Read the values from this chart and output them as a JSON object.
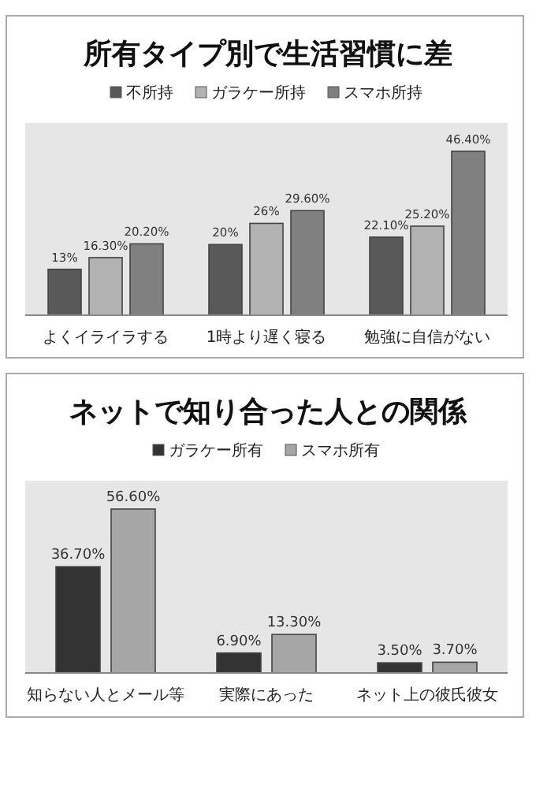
{
  "chart_data": [
    {
      "type": "bar",
      "title": "所有タイプ別で生活習慣に差",
      "categories": [
        "よくイライラする",
        "1時より遅く寝る",
        "勉強に自信がない"
      ],
      "legend": "top",
      "series": [
        {
          "name": "不所持",
          "color": "#595959",
          "values": [
            13,
            20,
            22.1
          ],
          "value_labels": [
            "13%",
            "20%",
            "22.10%"
          ]
        },
        {
          "name": "ガラケー所持",
          "color": "#b3b3b3",
          "values": [
            16.3,
            26,
            25.2
          ],
          "value_labels": [
            "16.30%",
            "26%",
            "25.20%"
          ]
        },
        {
          "name": "スマホ所持",
          "color": "#808080",
          "values": [
            20.2,
            29.6,
            46.4
          ],
          "value_labels": [
            "20.20%",
            "29.60%",
            "46.40%"
          ]
        }
      ]
    },
    {
      "type": "bar",
      "title": "ネットで知り合った人との関係",
      "categories": [
        "知らない人とメール等",
        "実際にあった",
        "ネット上の彼氏彼女"
      ],
      "legend": "top",
      "series": [
        {
          "name": "ガラケー所有",
          "color": "#333333",
          "values": [
            36.7,
            6.9,
            3.5
          ],
          "value_labels": [
            "36.70%",
            "6.90%",
            "3.50%"
          ]
        },
        {
          "name": "スマホ所有",
          "color": "#a6a6a6",
          "values": [
            56.6,
            13.3,
            3.7
          ],
          "value_labels": [
            "56.60%",
            "13.30%",
            "3.70%"
          ]
        }
      ]
    }
  ]
}
